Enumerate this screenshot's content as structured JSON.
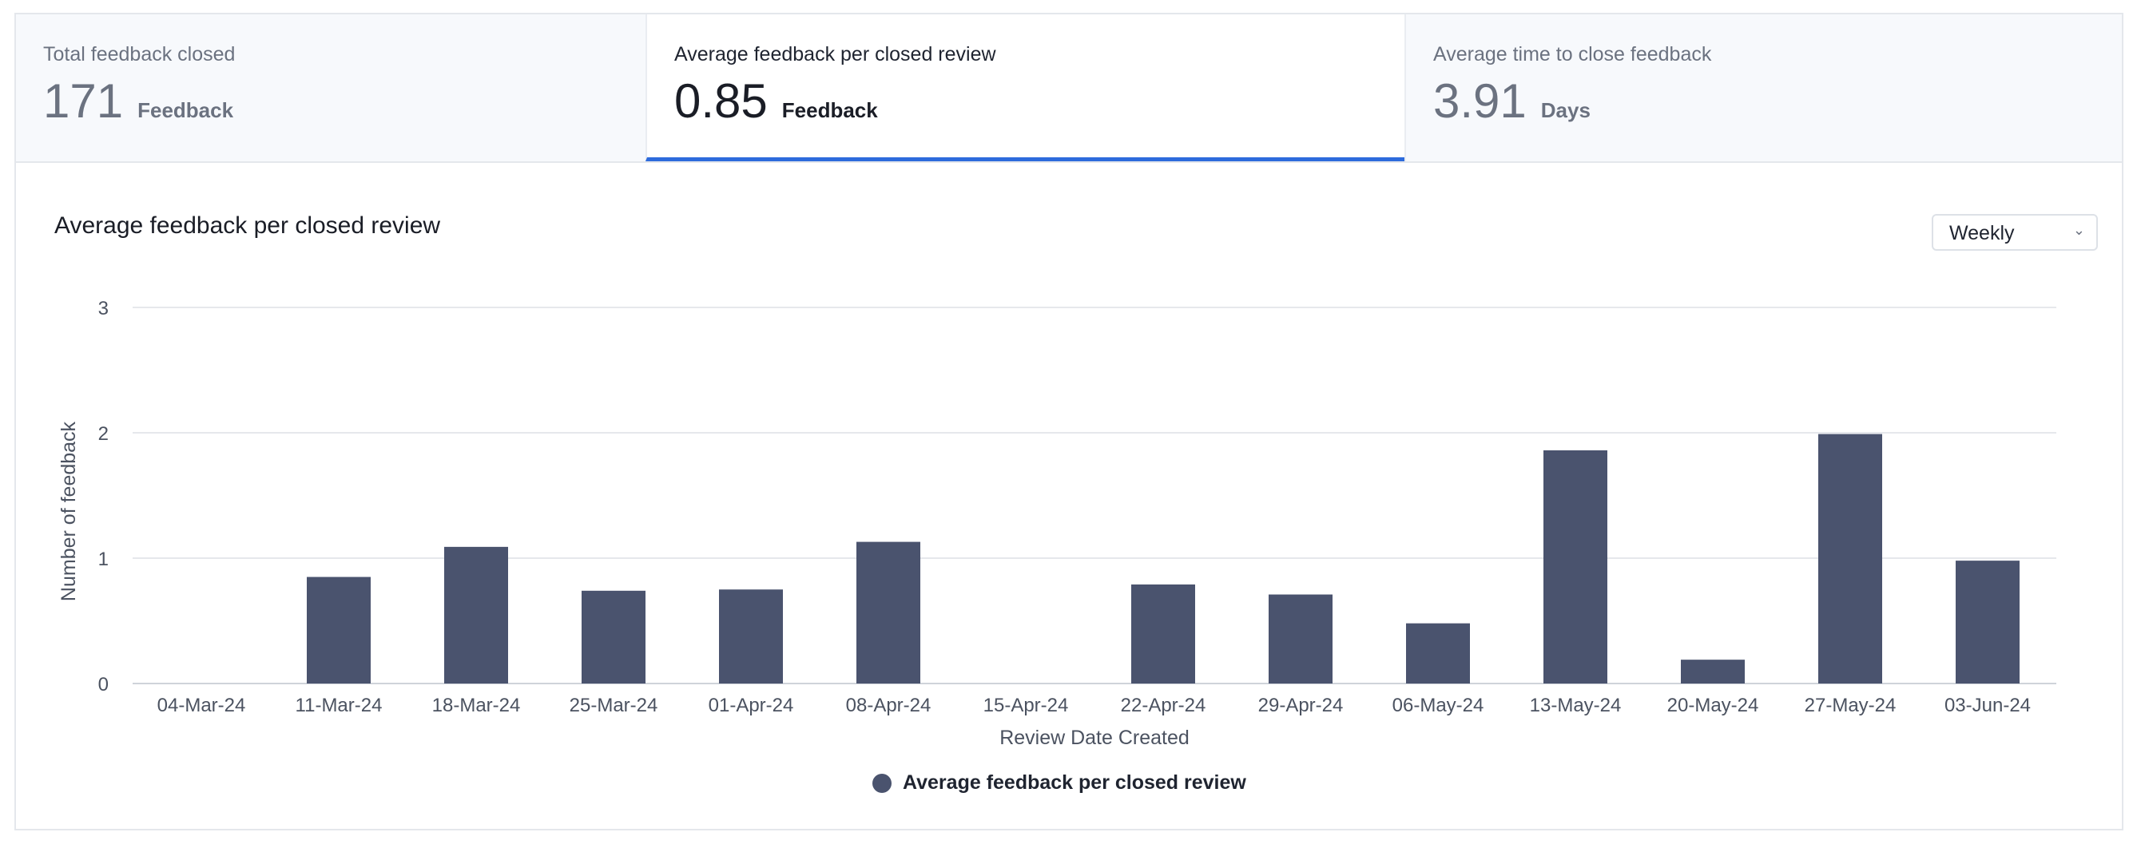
{
  "tabs": [
    {
      "label": "Total feedback closed",
      "value": "171",
      "unit": "Feedback",
      "active": false
    },
    {
      "label": "Average feedback per closed review",
      "value": "0.85",
      "unit": "Feedback",
      "active": true
    },
    {
      "label": "Average time to close feedback",
      "value": "3.91",
      "unit": "Days",
      "active": false
    }
  ],
  "period_select": {
    "value": "Weekly"
  },
  "colors": {
    "bar": "#4a536e",
    "accent": "#2d6bdc",
    "grid": "#e6e8ec"
  },
  "chart_data": {
    "type": "bar",
    "title": "Average feedback per closed review",
    "xlabel": "Review Date Created",
    "ylabel": "Number of feedback",
    "ylim": [
      0,
      3
    ],
    "yticks": [
      0,
      1,
      2,
      3
    ],
    "grid": true,
    "legend_position": "bottom",
    "categories": [
      "04-Mar-24",
      "11-Mar-24",
      "18-Mar-24",
      "25-Mar-24",
      "01-Apr-24",
      "08-Apr-24",
      "15-Apr-24",
      "22-Apr-24",
      "29-Apr-24",
      "06-May-24",
      "13-May-24",
      "20-May-24",
      "27-May-24",
      "03-Jun-24"
    ],
    "series": [
      {
        "name": "Average feedback per closed review",
        "values": [
          0,
          0.85,
          1.09,
          0.74,
          0.75,
          1.13,
          0,
          0.79,
          0.71,
          0.48,
          1.86,
          0.19,
          1.99,
          0.98
        ]
      }
    ]
  }
}
